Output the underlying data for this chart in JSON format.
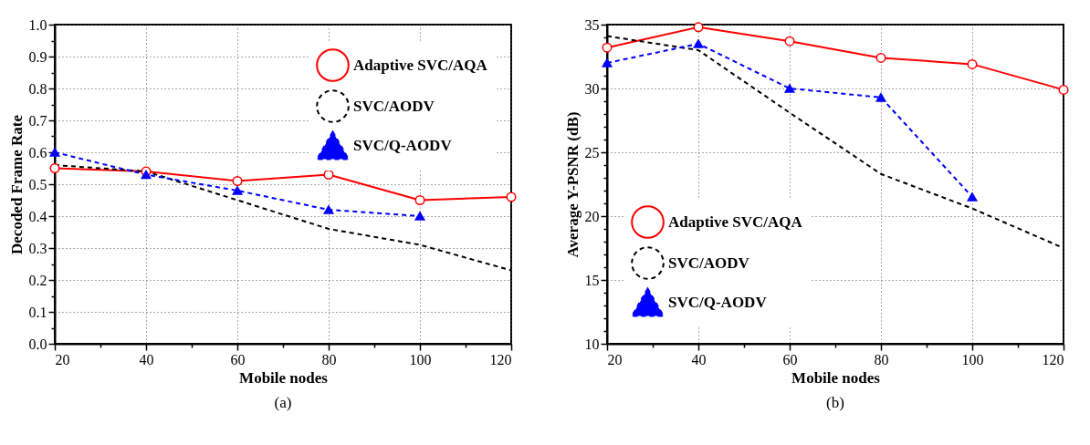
{
  "chart_data": [
    {
      "type": "line",
      "xlabel": "Mobile nodes",
      "ylabel": "Decoded Frame Rate",
      "annotations": [
        "(a)"
      ],
      "x": [
        20,
        40,
        60,
        80,
        100,
        120
      ],
      "xlim": [
        20,
        120
      ],
      "xticks": [
        20,
        {
          "value": 30,
          "label": null
        },
        40,
        {
          "value": 50,
          "label": null
        },
        60,
        {
          "value": 70,
          "label": null
        },
        80,
        {
          "value": 90,
          "label": null
        },
        100,
        {
          "value": 110,
          "label": null
        },
        120
      ],
      "ylim": [
        0,
        1
      ],
      "yticks": [
        {
          "value": 0,
          "label": "0.0"
        },
        {
          "value": 0.05,
          "label": null
        },
        {
          "value": 0.1,
          "label": "0.1"
        },
        {
          "value": 0.15,
          "label": null
        },
        {
          "value": 0.2,
          "label": "0.2"
        },
        {
          "value": 0.25,
          "label": null
        },
        {
          "value": 0.3,
          "label": "0.3"
        },
        {
          "value": 0.35,
          "label": null
        },
        {
          "value": 0.4,
          "label": "0.4"
        },
        {
          "value": 0.45,
          "label": null
        },
        {
          "value": 0.5,
          "label": "0.5"
        },
        {
          "value": 0.55,
          "label": null
        },
        {
          "value": 0.6,
          "label": "0.6"
        },
        {
          "value": 0.65,
          "label": null
        },
        {
          "value": 0.7,
          "label": "0.7"
        },
        {
          "value": 0.75,
          "label": null
        },
        {
          "value": 0.8,
          "label": "0.8"
        },
        {
          "value": 0.85,
          "label": null
        },
        {
          "value": 0.9,
          "label": "0.9"
        },
        {
          "value": 0.95,
          "label": null
        },
        {
          "value": 1,
          "label": "1.0"
        }
      ],
      "grid": true,
      "legend": "top right",
      "series": [
        {
          "name": "Adaptive SVC/AQA",
          "color": "#ff0000",
          "line_style": "solid",
          "marker": "circle",
          "values": [
            0.55,
            0.54,
            0.51,
            0.53,
            0.45,
            0.46
          ]
        },
        {
          "name": "SVC/AODV",
          "color": "#000000",
          "line_style": "dashed",
          "marker": "none",
          "values": [
            0.56,
            0.54,
            0.45,
            0.36,
            0.31,
            0.23
          ]
        },
        {
          "name": "SVC/Q-AODV",
          "color": "#0000ff",
          "line_style": "dashed",
          "marker": "triangle",
          "values": [
            0.6,
            0.53,
            0.48,
            0.42,
            0.4,
            null
          ]
        }
      ]
    },
    {
      "type": "line",
      "xlabel": "Mobile nodes",
      "ylabel": "Average Y-PSNR (dB)",
      "annotations": [
        "(b)"
      ],
      "x": [
        20,
        40,
        60,
        80,
        100,
        120
      ],
      "xlim": [
        20,
        120
      ],
      "xticks": [
        20,
        {
          "value": 30,
          "label": null
        },
        40,
        {
          "value": 50,
          "label": null
        },
        60,
        {
          "value": 70,
          "label": null
        },
        80,
        {
          "value": 90,
          "label": null
        },
        100,
        {
          "value": 110,
          "label": null
        },
        120
      ],
      "ylim": [
        10,
        35
      ],
      "yticks": [
        10,
        {
          "value": 11,
          "label": null
        },
        {
          "value": 12,
          "label": null
        },
        {
          "value": 13,
          "label": null
        },
        {
          "value": 14,
          "label": null
        },
        15,
        {
          "value": 16,
          "label": null
        },
        {
          "value": 17,
          "label": null
        },
        {
          "value": 18,
          "label": null
        },
        {
          "value": 19,
          "label": null
        },
        20,
        {
          "value": 21,
          "label": null
        },
        {
          "value": 22,
          "label": null
        },
        {
          "value": 23,
          "label": null
        },
        {
          "value": 24,
          "label": null
        },
        25,
        {
          "value": 26,
          "label": null
        },
        {
          "value": 27,
          "label": null
        },
        {
          "value": 28,
          "label": null
        },
        {
          "value": 29,
          "label": null
        },
        30,
        {
          "value": 31,
          "label": null
        },
        {
          "value": 32,
          "label": null
        },
        {
          "value": 33,
          "label": null
        },
        {
          "value": 34,
          "label": null
        },
        35
      ],
      "grid": true,
      "legend": "bottom left",
      "series": [
        {
          "name": "Adaptive SVC/AQA",
          "color": "#ff0000",
          "line_style": "solid",
          "marker": "circle",
          "values": [
            33.2,
            34.8,
            33.7,
            32.4,
            31.9,
            29.9
          ]
        },
        {
          "name": "SVC/AODV",
          "color": "#000000",
          "line_style": "dashed",
          "marker": "none",
          "values": [
            34.1,
            33.0,
            28.1,
            23.3,
            20.6,
            17.5
          ]
        },
        {
          "name": "SVC/Q-AODV",
          "color": "#0000ff",
          "line_style": "dashed",
          "marker": "triangle",
          "values": [
            32.0,
            33.5,
            30.0,
            29.3,
            21.5,
            null
          ]
        }
      ]
    }
  ]
}
